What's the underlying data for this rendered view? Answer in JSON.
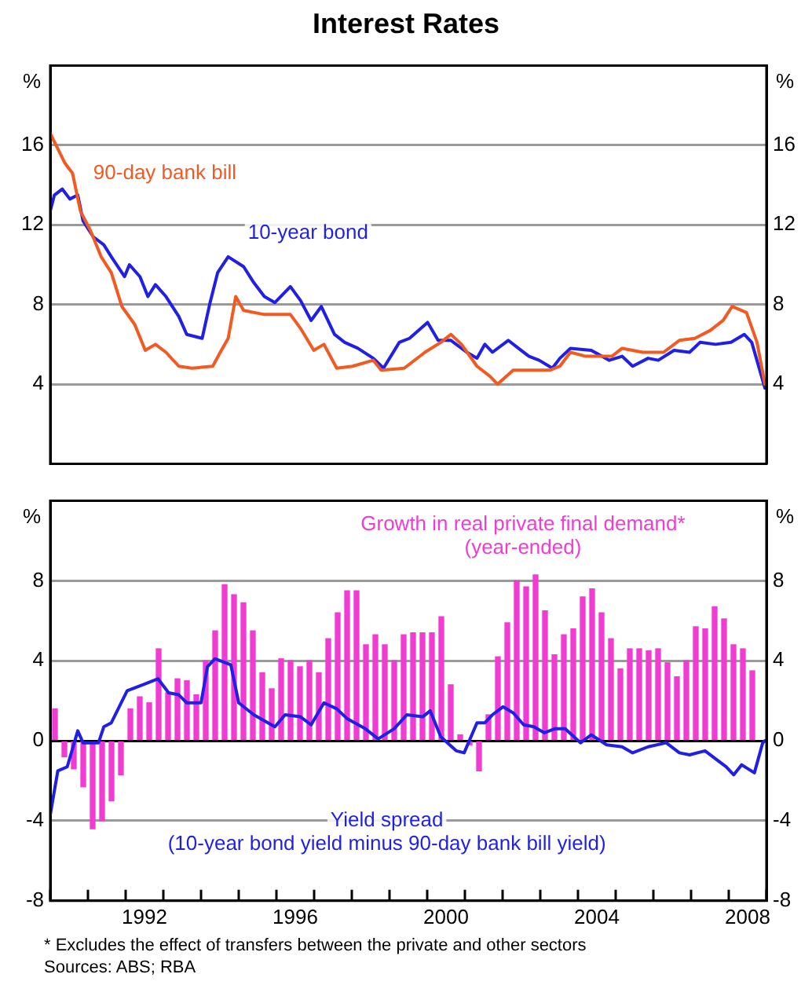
{
  "chart_data": [
    {
      "type": "line",
      "title": "Interest Rates",
      "xlim": [
        1990,
        2009
      ],
      "ylim": [
        0,
        20
      ],
      "yticks": [
        4,
        8,
        12,
        16
      ],
      "y2lim": [
        0,
        20
      ],
      "y2ticks": [
        4,
        8,
        12,
        16
      ],
      "ylabel": "%",
      "y2label": "%",
      "tick_labels": "y",
      "grid": "y",
      "series": [
        {
          "name": "90-day bank bill",
          "color": "#f25a22",
          "x": [
            1990.0,
            1990.18,
            1990.39,
            1990.59,
            1990.8,
            1991.07,
            1991.35,
            1991.62,
            1991.9,
            1992.24,
            1992.52,
            1992.79,
            1993.07,
            1993.41,
            1993.76,
            1994.31,
            1994.51,
            1994.72,
            1994.92,
            1995.13,
            1995.68,
            1996.37,
            1996.64,
            1996.99,
            1997.26,
            1997.6,
            1998.02,
            1998.57,
            1998.78,
            1999.39,
            1999.94,
            2000.36,
            2000.63,
            2000.91,
            2001.32,
            2001.66,
            2001.87,
            2002.28,
            2002.83,
            2003.25,
            2003.52,
            2003.8,
            2004.21,
            2004.9,
            2005.17,
            2005.72,
            2006.27,
            2006.69,
            2007.1,
            2007.51,
            2007.85,
            2008.09,
            2008.47,
            2008.75,
            2008.96
          ],
          "values": [
            16.6,
            15.9,
            15.1,
            14.6,
            12.7,
            11.7,
            10.4,
            9.6,
            7.9,
            7.0,
            5.7,
            6.0,
            5.6,
            4.9,
            4.8,
            4.9,
            5.6,
            6.3,
            8.4,
            7.7,
            7.5,
            7.5,
            6.8,
            5.7,
            6.0,
            4.8,
            4.9,
            5.2,
            4.7,
            4.8,
            5.6,
            6.1,
            6.5,
            6.0,
            4.9,
            4.4,
            4.0,
            4.7,
            4.7,
            4.7,
            4.9,
            5.6,
            5.4,
            5.4,
            5.8,
            5.6,
            5.6,
            6.2,
            6.3,
            6.7,
            7.2,
            7.9,
            7.6,
            6.1,
            4.0
          ]
        },
        {
          "name": "10-year bond",
          "color": "#1f1fe6",
          "x": [
            1990.0,
            1990.11,
            1990.32,
            1990.52,
            1990.73,
            1990.87,
            1991.14,
            1991.42,
            1991.62,
            1991.97,
            1992.1,
            1992.38,
            1992.59,
            1992.79,
            1993.07,
            1993.41,
            1993.62,
            1994.03,
            1994.24,
            1994.44,
            1994.72,
            1995.13,
            1995.4,
            1995.68,
            1995.96,
            1996.37,
            1996.64,
            1996.92,
            1997.19,
            1997.54,
            1997.81,
            1998.16,
            1998.57,
            1998.84,
            1999.26,
            1999.53,
            2000.01,
            2000.29,
            2000.63,
            2001.05,
            2001.32,
            2001.53,
            2001.73,
            2002.15,
            2002.42,
            2002.7,
            2002.97,
            2003.32,
            2003.52,
            2003.8,
            2004.35,
            2004.83,
            2005.17,
            2005.45,
            2005.86,
            2006.13,
            2006.55,
            2006.96,
            2007.24,
            2007.65,
            2008.06,
            2008.41,
            2008.61,
            2008.96
          ],
          "values": [
            12.7,
            13.5,
            13.8,
            13.3,
            13.5,
            12.2,
            11.4,
            11.0,
            10.4,
            9.4,
            10.0,
            9.4,
            8.4,
            9.0,
            8.4,
            7.4,
            6.5,
            6.3,
            8.1,
            9.6,
            10.4,
            9.9,
            9.1,
            8.4,
            8.1,
            8.9,
            8.2,
            7.2,
            7.9,
            6.5,
            6.1,
            5.8,
            5.3,
            4.8,
            6.1,
            6.3,
            7.1,
            6.2,
            6.2,
            5.6,
            5.3,
            6.0,
            5.6,
            6.2,
            5.8,
            5.4,
            5.2,
            4.8,
            5.3,
            5.8,
            5.7,
            5.2,
            5.4,
            4.9,
            5.3,
            5.2,
            5.7,
            5.6,
            6.1,
            6.0,
            6.1,
            6.5,
            6.1,
            3.8
          ]
        }
      ]
    },
    {
      "type": "bar",
      "xlim": [
        1990,
        2009
      ],
      "xticks": [
        {
          "value": 1990,
          "label": null
        },
        {
          "value": 1991,
          "label": null
        },
        {
          "value": 1992,
          "label": null
        },
        {
          "value": 1992.5,
          "label": "1992"
        },
        {
          "value": 1993,
          "label": null
        },
        {
          "value": 1994,
          "label": null
        },
        {
          "value": 1995,
          "label": null
        },
        {
          "value": 1996,
          "label": null
        },
        {
          "value": 1996.5,
          "label": "1996"
        },
        {
          "value": 1997,
          "label": null
        },
        {
          "value": 1998,
          "label": null
        },
        {
          "value": 1999,
          "label": null
        },
        {
          "value": 2000,
          "label": null
        },
        {
          "value": 2000.5,
          "label": "2000"
        },
        {
          "value": 2001,
          "label": null
        },
        {
          "value": 2002,
          "label": null
        },
        {
          "value": 2003,
          "label": null
        },
        {
          "value": 2004,
          "label": null
        },
        {
          "value": 2004.5,
          "label": "2004"
        },
        {
          "value": 2005,
          "label": null
        },
        {
          "value": 2006,
          "label": null
        },
        {
          "value": 2007,
          "label": null
        },
        {
          "value": 2008,
          "label": null
        },
        {
          "value": 2008.5,
          "label": "2008"
        },
        {
          "value": 2009,
          "label": null
        }
      ],
      "ylim": [
        -8,
        12
      ],
      "yticks": [
        -8,
        -4,
        0,
        4,
        8
      ],
      "y2lim": [
        -8,
        12
      ],
      "y2ticks": [
        -8,
        -4,
        0,
        4,
        8
      ],
      "ylabel": "%",
      "y2label": "%",
      "grid": "y",
      "annotations": [
        "*  Excludes the effect of transfers between the private and other sectors",
        "Sources: ABS; RBA"
      ],
      "series": [
        {
          "type": "bar",
          "name": "Growth in real private final demand*\n(year-ended)",
          "color": "#f03cd2",
          "x": [
            1990.125,
            1990.375,
            1990.625,
            1990.875,
            1991.125,
            1991.375,
            1991.625,
            1991.875,
            1992.125,
            1992.375,
            1992.625,
            1992.875,
            1993.125,
            1993.375,
            1993.625,
            1993.875,
            1994.125,
            1994.375,
            1994.625,
            1994.875,
            1995.125,
            1995.375,
            1995.625,
            1995.875,
            1996.125,
            1996.375,
            1996.625,
            1996.875,
            1997.125,
            1997.375,
            1997.625,
            1997.875,
            1998.125,
            1998.375,
            1998.625,
            1998.875,
            1999.125,
            1999.375,
            1999.625,
            1999.875,
            2000.125,
            2000.375,
            2000.625,
            2000.875,
            2001.125,
            2001.375,
            2001.625,
            2001.875,
            2002.125,
            2002.375,
            2002.625,
            2002.875,
            2003.125,
            2003.375,
            2003.625,
            2003.875,
            2004.125,
            2004.375,
            2004.625,
            2004.875,
            2005.125,
            2005.375,
            2005.625,
            2005.875,
            2006.125,
            2006.375,
            2006.625,
            2006.875,
            2007.125,
            2007.375,
            2007.625,
            2007.875,
            2008.125,
            2008.375,
            2008.625
          ],
          "values": [
            1.6,
            -0.8,
            -1.4,
            -2.3,
            -4.4,
            -4.0,
            -3.0,
            -1.7,
            1.6,
            2.2,
            1.9,
            4.6,
            2.4,
            3.1,
            3.0,
            2.3,
            4.0,
            5.5,
            7.8,
            7.3,
            6.9,
            5.5,
            3.4,
            2.6,
            4.1,
            4.0,
            3.7,
            4.0,
            3.4,
            5.1,
            6.4,
            7.5,
            7.5,
            4.8,
            5.3,
            4.8,
            4.0,
            5.3,
            5.4,
            5.4,
            5.4,
            6.2,
            2.8,
            0.3,
            -0.2,
            -1.5,
            1.3,
            4.2,
            5.9,
            8.0,
            7.7,
            8.3,
            6.5,
            4.3,
            5.3,
            5.6,
            7.2,
            7.6,
            6.4,
            5.1,
            3.6,
            4.6,
            4.6,
            4.5,
            4.6,
            3.9,
            3.2,
            4.0,
            5.7,
            5.6,
            6.7,
            6.1,
            4.8,
            4.6,
            3.5
          ]
        },
        {
          "type": "line",
          "name": "Yield spread\n(10-year bond yield minus 90-day bank bill yield)",
          "color": "#1f1fe6",
          "x": [
            1990.0,
            1990.2,
            1990.45,
            1990.73,
            1990.87,
            1991.28,
            1991.42,
            1991.62,
            1992.04,
            1992.45,
            1992.86,
            1993.14,
            1993.41,
            1993.62,
            1994.0,
            1994.17,
            1994.37,
            1994.79,
            1995.0,
            1995.4,
            1995.96,
            1996.23,
            1996.64,
            1996.92,
            1997.26,
            1997.6,
            1997.88,
            1998.36,
            1998.7,
            1999.12,
            1999.46,
            1999.88,
            2000.08,
            2000.36,
            2000.77,
            2000.98,
            2001.32,
            2001.53,
            2001.73,
            2002.01,
            2002.28,
            2002.56,
            2002.83,
            2003.11,
            2003.38,
            2003.66,
            2004.07,
            2004.35,
            2004.76,
            2005.17,
            2005.45,
            2005.86,
            2006.34,
            2006.69,
            2006.96,
            2007.37,
            2007.72,
            2007.93,
            2008.13,
            2008.34,
            2008.68,
            2008.9,
            2008.96
          ],
          "values": [
            -3.7,
            -1.5,
            -1.3,
            0.5,
            -0.1,
            -0.1,
            0.7,
            0.9,
            2.5,
            2.8,
            3.1,
            2.4,
            2.3,
            1.9,
            1.9,
            3.7,
            4.1,
            3.8,
            1.9,
            1.3,
            0.7,
            1.3,
            1.2,
            0.8,
            1.9,
            1.6,
            1.1,
            0.6,
            0.1,
            0.6,
            1.3,
            1.2,
            1.5,
            0.2,
            -0.5,
            -0.6,
            0.9,
            0.9,
            1.3,
            1.7,
            1.4,
            0.8,
            0.7,
            0.4,
            0.6,
            0.6,
            -0.1,
            0.3,
            -0.2,
            -0.3,
            -0.6,
            -0.3,
            -0.1,
            -0.6,
            -0.7,
            -0.5,
            -1.0,
            -1.3,
            -1.7,
            -1.2,
            -1.6,
            -0.1,
            0.0
          ]
        }
      ]
    }
  ]
}
